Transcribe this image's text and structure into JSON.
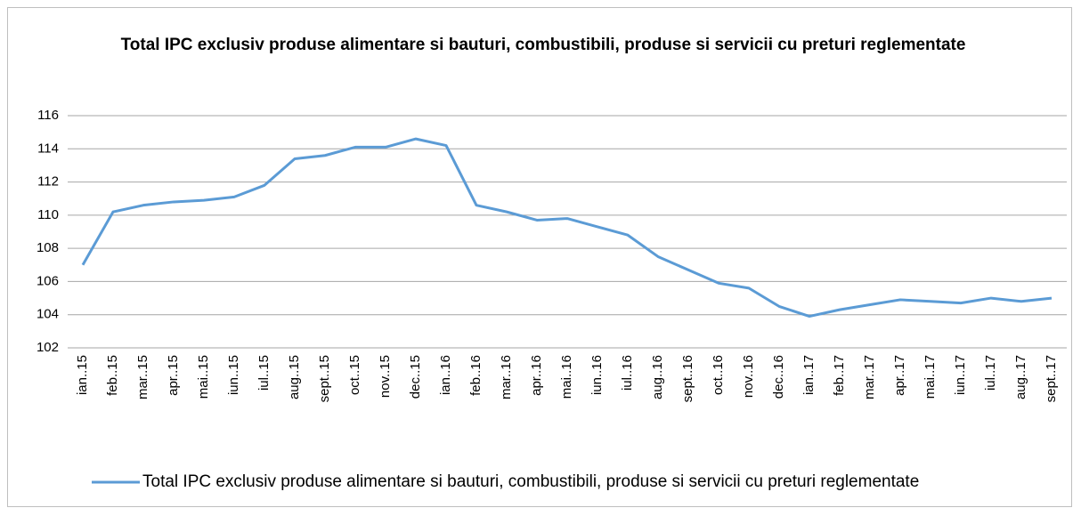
{
  "chart_data": {
    "type": "line",
    "title": "Total IPC exclusiv produse alimentare si bauturi, combustibili, produse si servicii cu preturi reglementate",
    "categories": [
      "ian..15",
      "feb..15",
      "mar..15",
      "apr..15",
      "mai..15",
      "iun..15",
      "iul..15",
      "aug..15",
      "sept..15",
      "oct..15",
      "nov..15",
      "dec..15",
      "ian..16",
      "feb..16",
      "mar..16",
      "apr..16",
      "mai..16",
      "iun..16",
      "iul..16",
      "aug..16",
      "sept..16",
      "oct..16",
      "nov..16",
      "dec..16",
      "ian..17",
      "feb..17",
      "mar..17",
      "apr..17",
      "mai..17",
      "iun..17",
      "iul..17",
      "aug..17",
      "sept..17"
    ],
    "series": [
      {
        "name": "Total IPC exclusiv produse alimentare si bauturi, combustibili, produse si servicii cu preturi reglementate",
        "color": "#5b9bd5",
        "values": [
          107.0,
          110.2,
          110.6,
          110.8,
          110.9,
          111.1,
          111.8,
          113.4,
          113.6,
          114.1,
          114.1,
          114.6,
          114.2,
          110.6,
          110.2,
          109.7,
          109.8,
          109.3,
          108.8,
          107.5,
          106.7,
          105.9,
          105.6,
          104.5,
          103.9,
          104.3,
          104.6,
          104.9,
          104.8,
          104.7,
          105.0,
          104.8,
          105.0
        ]
      }
    ],
    "ylim": [
      102,
      116
    ],
    "yticks": [
      102,
      104,
      106,
      108,
      110,
      112,
      114,
      116
    ],
    "grid": true,
    "legend": "bottom"
  }
}
